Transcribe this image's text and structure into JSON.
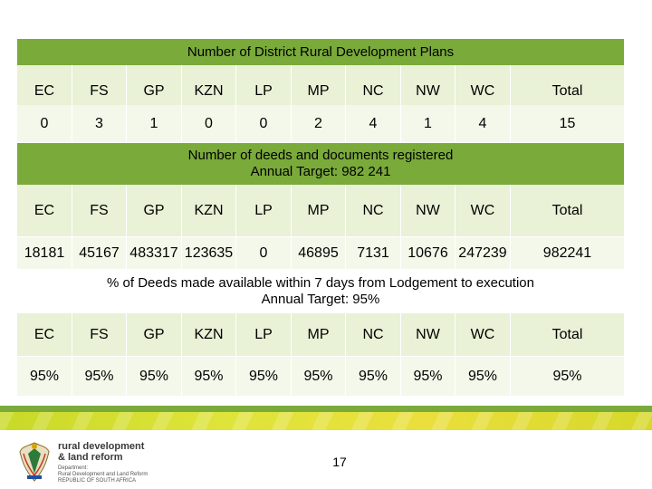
{
  "sections": [
    {
      "title_lines": [
        "Number of District Rural Development Plans"
      ],
      "columns": [
        "EC",
        "FS",
        "GP",
        "KZN",
        "LP",
        "MP",
        "NC",
        "NW",
        "WC",
        "Total"
      ],
      "values": [
        "0",
        "3",
        "1",
        "0",
        "0",
        "2",
        "4",
        "1",
        "4",
        "15"
      ]
    },
    {
      "title_lines": [
        "Number of deeds and documents registered",
        "Annual Target: 982 241"
      ],
      "columns": [
        "EC",
        "FS",
        "GP",
        "KZN",
        "LP",
        "MP",
        "NC",
        "NW",
        "WC",
        "Total"
      ],
      "values": [
        "18181",
        "45167",
        "483317",
        "123635",
        "0",
        "46895",
        "7131",
        "10676",
        "247239",
        "982241"
      ]
    },
    {
      "title_lines": [
        "% of Deeds made available within 7 days from Lodgement to execution",
        "Annual Target: 95%"
      ],
      "columns": [
        "EC",
        "FS",
        "GP",
        "KZN",
        "LP",
        "MP",
        "NC",
        "NW",
        "WC",
        "Total"
      ],
      "values": [
        "95%",
        "95%",
        "95%",
        "95%",
        "95%",
        "95%",
        "95%",
        "95%",
        "95%",
        "95%"
      ]
    }
  ],
  "logo": {
    "title_line1": "rural development",
    "title_line2": "& land reform",
    "sub_line1": "Department:",
    "sub_line2": "Rural Development and Land Reform",
    "sub_line3": "REPUBLIC OF SOUTH AFRICA"
  },
  "page_number": "17",
  "colors": {
    "banner_green": "#7aaa3a",
    "cell_bg": "#e9f1d6",
    "bar_yellow": "#dfe43a"
  },
  "icons": [
    "coat-of-arms-icon"
  ]
}
